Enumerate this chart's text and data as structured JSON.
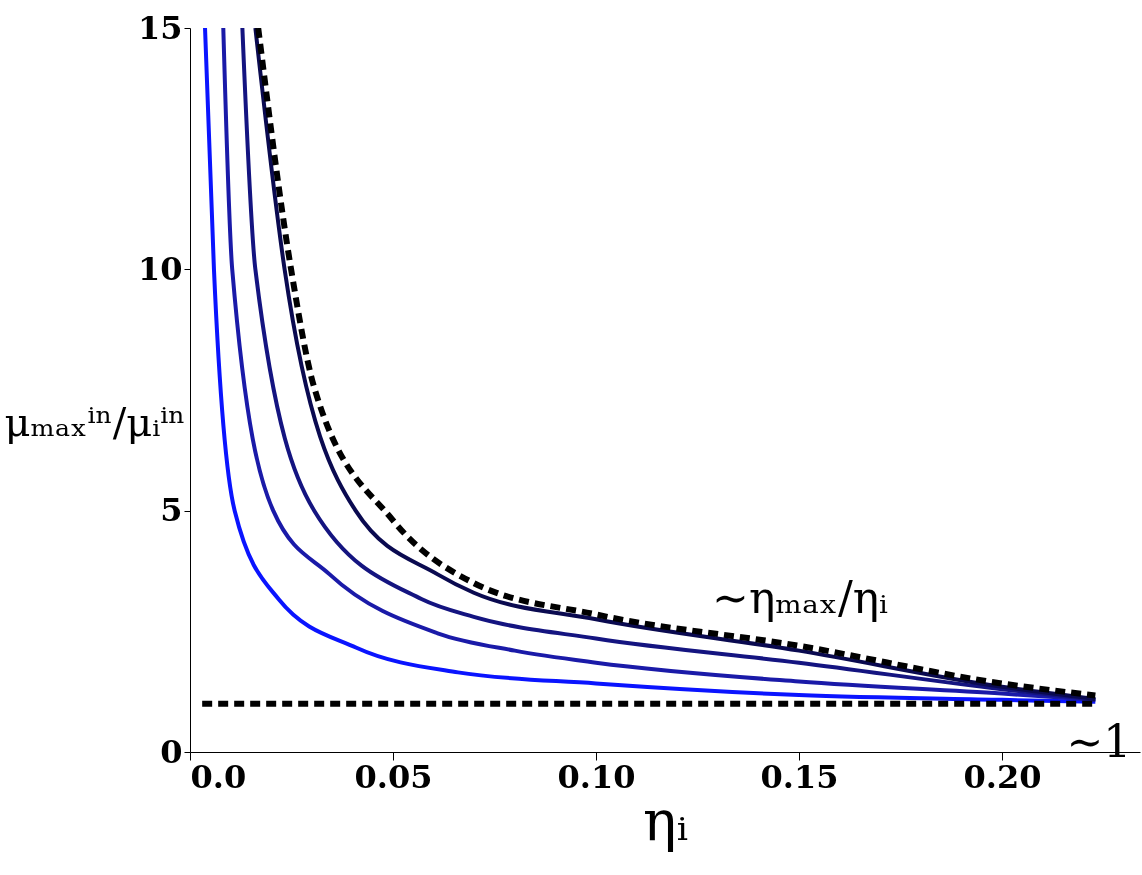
{
  "chart_data": {
    "type": "line",
    "xlabel": "ηᵢ",
    "ylabel": "μₘₐₓⁱⁿ/μᵢⁱⁿ",
    "xlim": [
      0,
      0.234
    ],
    "ylim": [
      0,
      15
    ],
    "xticks": [
      {
        "value": 0,
        "label": "0.0"
      },
      0.05,
      {
        "value": 0.1,
        "label": "0.10"
      },
      0.15,
      {
        "value": 0.2,
        "label": "0.20"
      }
    ],
    "yticks": [
      0,
      5,
      10,
      15
    ],
    "grid": false,
    "marker": "none",
    "series": [
      {
        "color": "#0a14ff",
        "line_style": "solid",
        "x": [
          0.0037,
          0.0059,
          0.011,
          0.0218,
          0.041,
          0.066,
          0.1,
          0.15,
          0.2,
          0.223
        ],
        "values": [
          15,
          10,
          5,
          3.17,
          2.16,
          1.65,
          1.42,
          1.18,
          1.08,
          1.04
        ]
      },
      {
        "color": "#1a1aa8",
        "line_style": "solid",
        "x": [
          0.0082,
          0.0104,
          0.0205,
          0.0344,
          0.061,
          0.08,
          0.1,
          0.15,
          0.2,
          0.223
        ],
        "values": [
          15,
          10,
          5,
          3.68,
          2.46,
          2.1,
          1.85,
          1.46,
          1.21,
          1.08
        ]
      },
      {
        "color": "#141480",
        "line_style": "solid",
        "x": [
          0.0129,
          0.0161,
          0.0306,
          0.057,
          0.0699,
          0.1,
          0.15,
          0.2,
          0.223
        ],
        "values": [
          15,
          10,
          5,
          3.17,
          2.8,
          2.35,
          1.85,
          1.3,
          1.08
        ]
      },
      {
        "color": "#0a0a50",
        "line_style": "solid",
        "x": [
          0.0161,
          0.0233,
          0.0408,
          0.061,
          0.0699,
          0.1,
          0.15,
          0.2,
          0.223
        ],
        "values": [
          15,
          10,
          5,
          3.68,
          3.3,
          2.75,
          2.1,
          1.35,
          1.1
        ]
      },
      {
        "color": "#000000",
        "line_style": "dashed",
        "x": [
          0.0168,
          0.0249,
          0.0306,
          0.05,
          0.0699,
          0.1,
          0.15,
          0.2,
          0.223
        ],
        "values": [
          15,
          10,
          7.55,
          4.8,
          3.5,
          2.85,
          2.2,
          1.42,
          1.17
        ]
      },
      {
        "color": "#000000",
        "line_style": "dashed",
        "x": [
          0.003,
          0.223
        ],
        "values": [
          1,
          1
        ]
      }
    ],
    "annotations": [
      "∼ηₘₐₓ/ηᵢ",
      {
        "text": "∼1",
        "x": 0.223,
        "y": 1
      }
    ]
  }
}
